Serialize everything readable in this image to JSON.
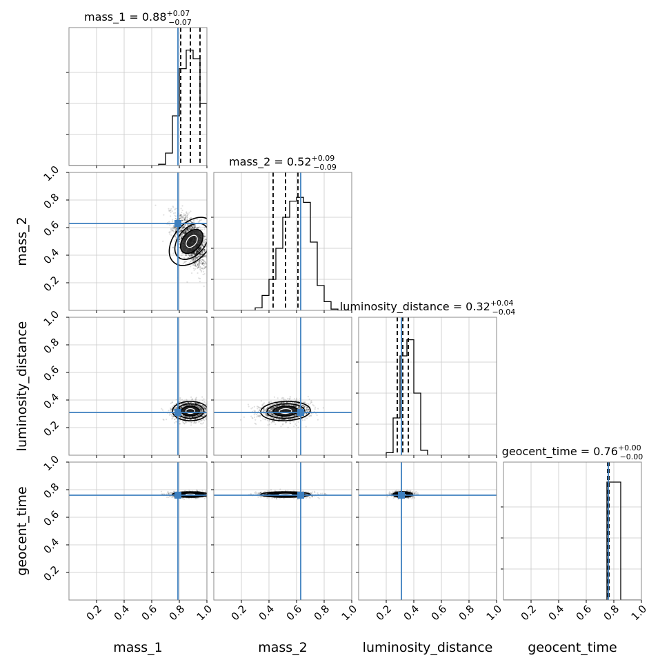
{
  "parameters": [
    "mass_1",
    "mass_2",
    "luminosity_distance",
    "geocent_time"
  ],
  "colors": {
    "truth": "#3d7fbf",
    "hist": "#000000",
    "quantile": "#000000",
    "grid": "#c8c8c8",
    "frame": "#888888"
  },
  "chart_data": {
    "type": "corner",
    "axis_range": [
      0,
      1
    ],
    "tick_values": [
      0.2,
      0.4,
      0.6,
      0.8,
      1.0
    ],
    "tick_labels": [
      "0.2",
      "0.4",
      "0.6",
      "0.8",
      "1.0"
    ],
    "grid": true,
    "titles": [
      {
        "param": "mass_1",
        "prefix": "mass_1 = ",
        "median": "0.88",
        "plus": "+0.07",
        "minus": "−0.07"
      },
      {
        "param": "mass_2",
        "prefix": "mass_2 = ",
        "median": "0.52",
        "plus": "+0.09",
        "minus": "−0.09"
      },
      {
        "param": "luminosity_distance",
        "prefix": "luminosity_distance = ",
        "median": "0.32",
        "plus": "+0.04",
        "minus": "−0.04"
      },
      {
        "param": "geocent_time",
        "prefix": "geocent_time = ",
        "median": "0.76",
        "plus": "+0.00",
        "minus": "−0.00"
      }
    ],
    "truths": [
      0.79,
      0.63,
      0.31,
      0.76
    ],
    "quantiles": [
      [
        0.81,
        0.88,
        0.95
      ],
      [
        0.43,
        0.52,
        0.61
      ],
      [
        0.28,
        0.32,
        0.36
      ],
      [
        0.755,
        0.76,
        0.765
      ]
    ],
    "histograms": [
      {
        "bin_start": 0.0,
        "bin_width": 0.05,
        "counts": [
          0,
          0,
          0,
          0,
          0,
          0,
          0,
          0,
          0,
          0,
          0,
          0,
          0,
          0.01,
          0.1,
          0.4,
          0.78,
          0.93,
          0.86,
          0.5
        ]
      },
      {
        "bin_start": 0.0,
        "bin_width": 0.05,
        "counts": [
          0,
          0,
          0,
          0,
          0,
          0,
          0.02,
          0.12,
          0.25,
          0.5,
          0.75,
          0.88,
          0.91,
          0.87,
          0.55,
          0.2,
          0.07,
          0.01,
          0,
          0
        ]
      },
      {
        "bin_start": 0.0,
        "bin_width": 0.05,
        "counts": [
          0,
          0,
          0,
          0,
          0.02,
          0.3,
          0.8,
          0.93,
          0.5,
          0.04,
          0,
          0,
          0,
          0,
          0,
          0,
          0,
          0,
          0,
          0
        ]
      },
      {
        "bin_start": 0.0,
        "bin_width": 0.05,
        "counts": [
          0,
          0,
          0,
          0,
          0,
          0,
          0,
          0,
          0,
          0,
          0,
          0,
          0,
          0,
          0,
          0.95,
          0.95,
          0,
          0,
          0
        ]
      }
    ],
    "hist_ymax": 1.0,
    "density_blobs": [
      {
        "row": 1,
        "col": 0,
        "cx": 0.89,
        "cy": 0.5,
        "sx": 0.065,
        "sy": 0.1,
        "rho": -0.55
      },
      {
        "row": 2,
        "col": 0,
        "cx": 0.88,
        "cy": 0.32,
        "sx": 0.065,
        "sy": 0.035,
        "rho": 0.0
      },
      {
        "row": 2,
        "col": 1,
        "cx": 0.52,
        "cy": 0.32,
        "sx": 0.09,
        "sy": 0.035,
        "rho": 0.1
      },
      {
        "row": 3,
        "col": 0,
        "cx": 0.88,
        "cy": 0.765,
        "sx": 0.065,
        "sy": 0.01,
        "rho": 0.0
      },
      {
        "row": 3,
        "col": 1,
        "cx": 0.52,
        "cy": 0.765,
        "sx": 0.09,
        "sy": 0.01,
        "rho": 0.0
      },
      {
        "row": 3,
        "col": 2,
        "cx": 0.32,
        "cy": 0.765,
        "sx": 0.035,
        "sy": 0.01,
        "rho": 0.0
      }
    ]
  }
}
